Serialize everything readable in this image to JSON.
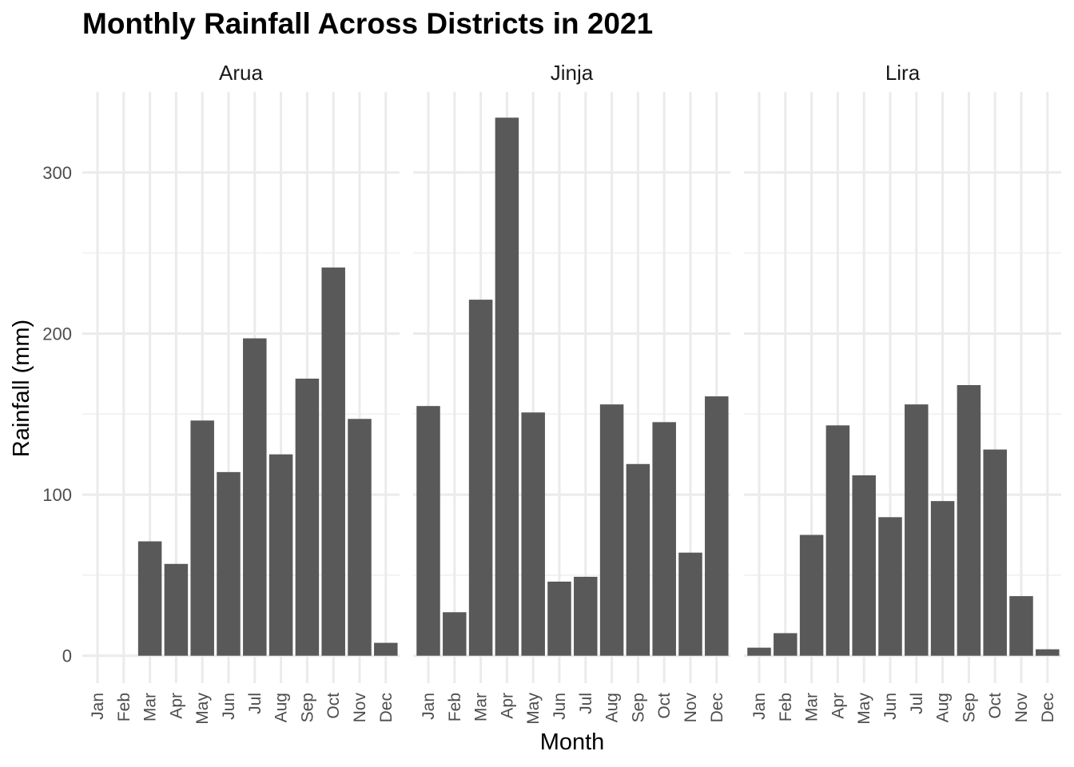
{
  "chart_data": {
    "type": "bar",
    "title": "Monthly Rainfall Across Districts in 2021",
    "xlabel": "Month",
    "ylabel": "Rainfall (mm)",
    "ylim": [
      -17,
      350
    ],
    "yticks": [
      0,
      100,
      200,
      300
    ],
    "categories": [
      "Jan",
      "Feb",
      "Mar",
      "Apr",
      "May",
      "Jun",
      "Jul",
      "Aug",
      "Sep",
      "Oct",
      "Nov",
      "Dec"
    ],
    "bar_color": "#595959",
    "panels": [
      {
        "name": "Arua",
        "values": [
          0,
          0,
          71,
          57,
          146,
          114,
          197,
          125,
          172,
          241,
          147,
          8
        ]
      },
      {
        "name": "Jinja",
        "values": [
          155,
          27,
          221,
          334,
          151,
          46,
          49,
          156,
          119,
          145,
          64,
          161
        ]
      },
      {
        "name": "Lira",
        "values": [
          5,
          14,
          75,
          143,
          112,
          86,
          156,
          96,
          168,
          128,
          37,
          4
        ]
      }
    ]
  }
}
